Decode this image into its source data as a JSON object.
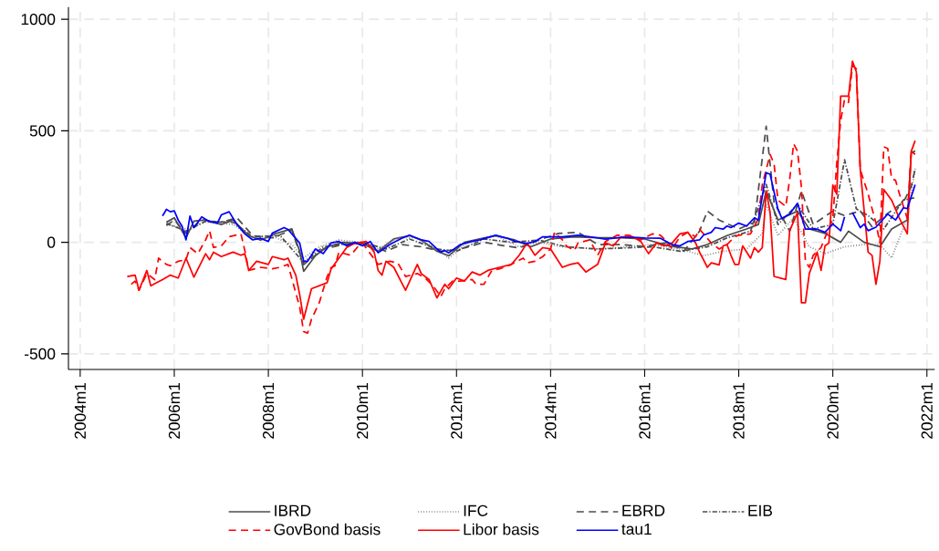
{
  "chart_data": {
    "type": "line",
    "xlim": [
      "2003-10",
      "2022-03"
    ],
    "ylim": [
      -570,
      1055
    ],
    "xticks": [
      {
        "value": "2004-01",
        "label": "2004m1"
      },
      {
        "value": "2006-01",
        "label": "2006m1"
      },
      {
        "value": "2008-01",
        "label": "2008m1"
      },
      {
        "value": "2010-01",
        "label": "2010m1"
      },
      {
        "value": "2012-01",
        "label": "2012m1"
      },
      {
        "value": "2014-01",
        "label": "2014m1"
      },
      {
        "value": "2016-01",
        "label": "2016m1"
      },
      {
        "value": "2018-01",
        "label": "2018m1"
      },
      {
        "value": "2020-01",
        "label": "2020m1"
      },
      {
        "value": "2022-01",
        "label": "2022m1"
      }
    ],
    "yticks": [
      -500,
      0,
      500,
      1000
    ],
    "grid": true,
    "legend": "bottom",
    "series": [
      {
        "name": "IBRD",
        "color": "#4d4d4d",
        "line_style": "solid",
        "x": [
          "2005-11",
          "2006-01",
          "2006-04",
          "2006-06",
          "2006-09",
          "2007-01",
          "2007-04",
          "2007-08",
          "2007-11",
          "2008-03",
          "2008-07",
          "2008-09",
          "2008-10",
          "2009-01",
          "2009-04",
          "2009-08",
          "2010-01",
          "2010-05",
          "2010-09",
          "2011-01",
          "2011-04",
          "2011-08",
          "2011-11",
          "2012-03",
          "2012-08",
          "2012-11",
          "2013-04",
          "2013-08",
          "2014-01",
          "2014-07",
          "2015-01",
          "2015-07",
          "2016-01",
          "2016-07",
          "2017-01",
          "2017-05",
          "2017-10",
          "2018-03",
          "2018-06",
          "2018-08",
          "2018-11",
          "2019-04",
          "2019-07",
          "2019-11",
          "2020-03",
          "2020-05",
          "2020-09",
          "2021-01",
          "2021-04",
          "2021-08",
          "2021-09",
          "2021-10"
        ],
        "values": [
          90,
          110,
          20,
          95,
          100,
          80,
          100,
          30,
          10,
          40,
          60,
          -40,
          -130,
          -60,
          -20,
          0,
          -5,
          -40,
          15,
          30,
          10,
          -40,
          -60,
          0,
          20,
          30,
          10,
          -20,
          15,
          25,
          20,
          20,
          15,
          -15,
          -30,
          -10,
          30,
          60,
          80,
          230,
          100,
          140,
          60,
          40,
          0,
          50,
          0,
          -20,
          60,
          100,
          400,
          410
        ]
      },
      {
        "name": "IFC",
        "color": "#808080",
        "line_style": "dotted",
        "x": [
          "2005-11",
          "2006-04",
          "2006-09",
          "2007-04",
          "2007-09",
          "2008-03",
          "2008-07",
          "2008-10",
          "2009-02",
          "2009-07",
          "2010-01",
          "2010-05",
          "2010-10",
          "2011-03",
          "2011-08",
          "2011-11",
          "2012-04",
          "2012-11",
          "2013-05",
          "2013-10",
          "2014-04",
          "2015-01",
          "2015-08",
          "2016-03",
          "2016-10",
          "2017-04",
          "2017-09",
          "2018-03",
          "2018-07",
          "2018-08",
          "2018-11",
          "2019-03",
          "2019-07",
          "2019-11",
          "2020-04",
          "2020-09",
          "2021-01",
          "2021-04",
          "2021-08",
          "2021-10"
        ],
        "values": [
          80,
          60,
          90,
          80,
          20,
          20,
          -10,
          -70,
          -20,
          10,
          0,
          -30,
          20,
          20,
          -30,
          -70,
          0,
          30,
          -20,
          0,
          -20,
          -30,
          -20,
          -10,
          -30,
          -60,
          -40,
          -30,
          40,
          170,
          30,
          110,
          -20,
          -50,
          -20,
          -10,
          -10,
          -70,
          110,
          330
        ]
      },
      {
        "name": "EBRD",
        "color": "#4d4d4d",
        "line_style": "dashed",
        "x": [
          "2005-11",
          "2006-01",
          "2006-04",
          "2006-08",
          "2007-01",
          "2007-05",
          "2007-09",
          "2008-02",
          "2008-07",
          "2008-10",
          "2009-03",
          "2009-08",
          "2010-01",
          "2010-07",
          "2010-11",
          "2011-04",
          "2011-09",
          "2012-02",
          "2012-08",
          "2013-01",
          "2013-05",
          "2013-10",
          "2014-03",
          "2014-08",
          "2015-01",
          "2015-07",
          "2016-01",
          "2016-07",
          "2016-11",
          "2017-03",
          "2017-05",
          "2017-08",
          "2018-01",
          "2018-05",
          "2018-08",
          "2018-10",
          "2019-02",
          "2019-05",
          "2019-08",
          "2020-01",
          "2020-04",
          "2020-08",
          "2020-11",
          "2021-03",
          "2021-07",
          "2021-09",
          "2021-10"
        ],
        "values": [
          75,
          100,
          40,
          100,
          90,
          110,
          30,
          20,
          55,
          -100,
          -30,
          -10,
          -5,
          -40,
          -10,
          -20,
          -40,
          -30,
          0,
          -15,
          -25,
          10,
          40,
          45,
          -10,
          -10,
          -20,
          0,
          -40,
          50,
          140,
          100,
          60,
          90,
          520,
          180,
          50,
          230,
          80,
          140,
          120,
          140,
          70,
          130,
          180,
          250,
          330
        ]
      },
      {
        "name": "EIB",
        "color": "#4d4d4d",
        "line_style": "dashdot",
        "x": [
          "2005-11",
          "2006-04",
          "2006-09",
          "2007-04",
          "2007-09",
          "2008-04",
          "2008-10",
          "2009-03",
          "2010-01",
          "2010-07",
          "2011-01",
          "2011-08",
          "2012-01",
          "2012-08",
          "2013-03",
          "2013-10",
          "2014-05",
          "2015-01",
          "2015-08",
          "2016-03",
          "2016-10",
          "2017-05",
          "2017-10",
          "2018-04",
          "2018-08",
          "2018-11",
          "2019-04",
          "2019-08",
          "2020-01",
          "2020-04",
          "2020-07",
          "2020-10",
          "2021-02",
          "2021-07",
          "2021-10"
        ],
        "values": [
          85,
          50,
          95,
          90,
          25,
          30,
          -90,
          -20,
          0,
          -30,
          15,
          -30,
          -40,
          15,
          0,
          10,
          -20,
          -30,
          -25,
          -20,
          -40,
          -20,
          20,
          50,
          260,
          80,
          170,
          60,
          80,
          370,
          150,
          120,
          60,
          190,
          200
        ]
      },
      {
        "name": "GovBond basis",
        "color": "#ff0000",
        "line_style": "dashed",
        "x": [
          "2005-02",
          "2005-03",
          "2005-04",
          "2005-06",
          "2005-08",
          "2005-09",
          "2005-11",
          "2005-12",
          "2006-02",
          "2006-04",
          "2006-05",
          "2006-07",
          "2006-09",
          "2006-10",
          "2006-11",
          "2007-01",
          "2007-03",
          "2007-06",
          "2007-07",
          "2007-08",
          "2007-11",
          "2008-02",
          "2008-04",
          "2008-06",
          "2008-09",
          "2008-10",
          "2008-11",
          "2008-12",
          "2009-02",
          "2009-04",
          "2009-05",
          "2009-06",
          "2009-07",
          "2009-10",
          "2009-12",
          "2010-01",
          "2010-05",
          "2010-08",
          "2010-10",
          "2010-12",
          "2011-03",
          "2011-05",
          "2011-07",
          "2011-09",
          "2011-10",
          "2011-12",
          "2012-02",
          "2012-05",
          "2012-06",
          "2012-08",
          "2012-10",
          "2012-12",
          "2013-03",
          "2013-06",
          "2013-07",
          "2013-09",
          "2013-11",
          "2014-01",
          "2014-02",
          "2014-04",
          "2014-05",
          "2014-07",
          "2014-08",
          "2014-11",
          "2015-01",
          "2015-03",
          "2015-06",
          "2015-09",
          "2015-12",
          "2016-03",
          "2016-05",
          "2016-07",
          "2016-08",
          "2016-10",
          "2016-12",
          "2017-02",
          "2017-03",
          "2017-06",
          "2017-08",
          "2017-10",
          "2017-12",
          "2018-01",
          "2018-04",
          "2018-06",
          "2018-07",
          "2018-09",
          "2018-10",
          "2018-11",
          "2019-01",
          "2019-02",
          "2019-03",
          "2019-04",
          "2019-05",
          "2019-06",
          "2019-07",
          "2019-08",
          "2019-10",
          "2020-01",
          "2020-02",
          "2020-03",
          "2020-04",
          "2020-05",
          "2020-06",
          "2020-07",
          "2020-08",
          "2020-10",
          "2020-12",
          "2021-01",
          "2021-02",
          "2021-03",
          "2021-04",
          "2021-05",
          "2021-06",
          "2021-08",
          "2021-09",
          "2021-10"
        ],
        "values": [
          -188,
          -174,
          -215,
          -140,
          -167,
          -71,
          -99,
          -105,
          -85,
          -78,
          -23,
          -51,
          11,
          52,
          -23,
          -16,
          25,
          38,
          -37,
          -126,
          -112,
          -119,
          -112,
          -99,
          -291,
          -400,
          -407,
          -345,
          -270,
          -154,
          -113,
          -106,
          -44,
          -58,
          -16,
          -3,
          -99,
          -85,
          -92,
          -153,
          -140,
          -160,
          -195,
          -243,
          -208,
          -174,
          -174,
          -167,
          -188,
          -188,
          -126,
          -119,
          -99,
          -71,
          -92,
          -85,
          -64,
          -30,
          45,
          11,
          -16,
          -37,
          -3,
          11,
          -58,
          4,
          32,
          32,
          11,
          38,
          32,
          -3,
          -30,
          25,
          45,
          25,
          59,
          -3,
          -30,
          -10,
          25,
          32,
          38,
          107,
          257,
          394,
          353,
          189,
          161,
          284,
          442,
          408,
          245,
          -85,
          -112,
          -58,
          -23,
          107,
          353,
          545,
          641,
          627,
          792,
          778,
          326,
          217,
          86,
          -3,
          428,
          421,
          285,
          278,
          217,
          107,
          408,
          394
        ]
      },
      {
        "name": "Libor basis",
        "color": "#ff0000",
        "line_style": "solid",
        "x": [
          "2005-01",
          "2005-03",
          "2005-04",
          "2005-06",
          "2005-07",
          "2005-10",
          "2005-12",
          "2006-02",
          "2006-04",
          "2006-06",
          "2006-09",
          "2006-10",
          "2006-11",
          "2007-01",
          "2007-04",
          "2007-06",
          "2007-07",
          "2007-08",
          "2007-10",
          "2008-01",
          "2008-02",
          "2008-05",
          "2008-06",
          "2008-08",
          "2008-09",
          "2008-10",
          "2008-12",
          "2009-04",
          "2009-05",
          "2009-07",
          "2009-09",
          "2009-11",
          "2010-02",
          "2010-04",
          "2010-05",
          "2010-06",
          "2010-07",
          "2010-09",
          "2010-11",
          "2010-12",
          "2011-03",
          "2011-04",
          "2011-06",
          "2011-08",
          "2011-10",
          "2011-11",
          "2012-01",
          "2012-03",
          "2012-05",
          "2012-07",
          "2012-09",
          "2012-12",
          "2013-03",
          "2013-05",
          "2013-07",
          "2013-09",
          "2013-11",
          "2014-01",
          "2014-04",
          "2014-06",
          "2014-08",
          "2014-10",
          "2015-01",
          "2015-03",
          "2015-05",
          "2015-07",
          "2015-10",
          "2015-12",
          "2016-02",
          "2016-04",
          "2016-06",
          "2016-08",
          "2016-10",
          "2016-12",
          "2017-02",
          "2017-03",
          "2017-05",
          "2017-06",
          "2017-08",
          "2017-09",
          "2017-10",
          "2017-11",
          "2017-12",
          "2018-01",
          "2018-02",
          "2018-04",
          "2018-05",
          "2018-06",
          "2018-07",
          "2018-08",
          "2018-09",
          "2018-10",
          "2019-01",
          "2019-02",
          "2019-04",
          "2019-05",
          "2019-06",
          "2019-07",
          "2019-09",
          "2019-10",
          "2019-11",
          "2019-12",
          "2020-01",
          "2020-02",
          "2020-03",
          "2020-05",
          "2020-06",
          "2020-07",
          "2020-08",
          "2020-10",
          "2020-11",
          "2020-12",
          "2021-01",
          "2021-02",
          "2021-04",
          "2021-06",
          "2021-08",
          "2021-09",
          "2021-10"
        ],
        "values": [
          -153,
          -147,
          -215,
          -126,
          -195,
          -167,
          -147,
          -160,
          -71,
          -156,
          -51,
          -78,
          -44,
          -64,
          -44,
          -58,
          -51,
          -126,
          -85,
          -99,
          -64,
          -78,
          -71,
          -147,
          -235,
          -345,
          -208,
          -181,
          -119,
          -71,
          -23,
          -5,
          4,
          -44,
          -126,
          -147,
          -85,
          -112,
          -181,
          -215,
          -99,
          -140,
          -167,
          -249,
          -188,
          -208,
          -160,
          -174,
          -133,
          -147,
          -126,
          -112,
          -99,
          -58,
          -3,
          -58,
          -24,
          -30,
          -112,
          -99,
          -92,
          -133,
          -99,
          -3,
          -16,
          25,
          25,
          4,
          -51,
          -3,
          -16,
          -3,
          38,
          45,
          -3,
          -44,
          -112,
          -92,
          -101,
          -16,
          -10,
          -58,
          -99,
          -99,
          -16,
          -71,
          -24,
          -44,
          -24,
          230,
          134,
          -153,
          -167,
          52,
          134,
          -271,
          -271,
          -140,
          -44,
          -126,
          -16,
          -3,
          257,
          216,
          655,
          655,
          812,
          764,
          326,
          -44,
          -58,
          -188,
          -85,
          237,
          189,
          107,
          38,
          408,
          456
        ]
      },
      {
        "name": "tau1",
        "color": "#0000ff",
        "line_style": "solid",
        "x": [
          "2005-10",
          "2005-11",
          "2005-12",
          "2006-01",
          "2006-02",
          "2006-03",
          "2006-04",
          "2006-05",
          "2006-06",
          "2006-08",
          "2006-10",
          "2006-12",
          "2007-01",
          "2007-03",
          "2007-05",
          "2007-07",
          "2007-09",
          "2007-11",
          "2008-01",
          "2008-02",
          "2008-05",
          "2008-06",
          "2008-09",
          "2008-10",
          "2008-11",
          "2009-01",
          "2009-03",
          "2009-05",
          "2009-07",
          "2009-09",
          "2009-11",
          "2010-01",
          "2010-03",
          "2010-05",
          "2010-08",
          "2010-11",
          "2011-01",
          "2011-04",
          "2011-06",
          "2011-08",
          "2011-09",
          "2011-10",
          "2011-11",
          "2012-02",
          "2012-05",
          "2012-07",
          "2012-11",
          "2013-02",
          "2013-04",
          "2013-07",
          "2013-09",
          "2013-11",
          "2014-01",
          "2014-04",
          "2014-08",
          "2014-11",
          "2015-03",
          "2015-07",
          "2015-11",
          "2016-01",
          "2016-05",
          "2016-08",
          "2016-10",
          "2016-12",
          "2017-03",
          "2017-04",
          "2017-06",
          "2017-07",
          "2017-09",
          "2017-10",
          "2017-11",
          "2018-01",
          "2018-03",
          "2018-05",
          "2018-06",
          "2018-08",
          "2018-09",
          "2018-11",
          "2018-12",
          "2019-02",
          "2019-04",
          "2019-06",
          "2019-09",
          "2019-11",
          "2020-01",
          "2020-03",
          "2020-04",
          "2020-05",
          "2020-06",
          "2020-08",
          "2020-09",
          "2020-10",
          "2020-12",
          "2021-03",
          "2021-05",
          "2021-07",
          "2021-08",
          "2021-10"
        ],
        "values": [
          118,
          148,
          137,
          141,
          100,
          72,
          11,
          118,
          66,
          114,
          93,
          86,
          123,
          137,
          79,
          38,
          11,
          18,
          4,
          41,
          66,
          58,
          -3,
          -85,
          -85,
          -30,
          -51,
          -3,
          4,
          -16,
          0,
          -16,
          4,
          -47,
          -10,
          18,
          32,
          11,
          4,
          -30,
          -44,
          -37,
          -47,
          -10,
          4,
          11,
          32,
          18,
          4,
          -5,
          4,
          25,
          25,
          25,
          32,
          25,
          14,
          22,
          22,
          19,
          18,
          -10,
          -16,
          4,
          11,
          32,
          45,
          66,
          59,
          73,
          66,
          86,
          73,
          110,
          100,
          312,
          305,
          148,
          107,
          127,
          175,
          59,
          59,
          45,
          82,
          52,
          114,
          null,
          134,
          66,
          82,
          52,
          68,
          127,
          100,
          155,
          151,
          258
        ]
      }
    ]
  }
}
